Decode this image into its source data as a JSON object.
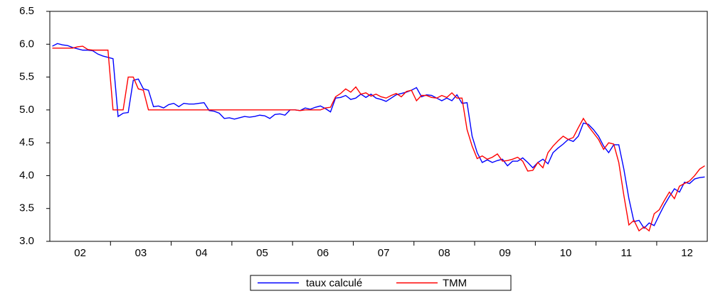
{
  "chart_data": {
    "type": "line",
    "categories": [
      null,
      null,
      null,
      null,
      null,
      null,
      "02",
      null,
      null,
      null,
      null,
      null,
      null,
      null,
      null,
      null,
      null,
      null,
      "03",
      null,
      null,
      null,
      null,
      null,
      null,
      null,
      null,
      null,
      null,
      null,
      "04",
      null,
      null,
      null,
      null,
      null,
      null,
      null,
      null,
      null,
      null,
      null,
      "05",
      null,
      null,
      null,
      null,
      null,
      null,
      null,
      null,
      null,
      null,
      null,
      "06",
      null,
      null,
      null,
      null,
      null,
      null,
      null,
      null,
      null,
      null,
      null,
      "07",
      null,
      null,
      null,
      null,
      null,
      null,
      null,
      null,
      null,
      null,
      null,
      "08",
      null,
      null,
      null,
      null,
      null,
      null,
      null,
      null,
      null,
      null,
      null,
      "09",
      null,
      null,
      null,
      null,
      null,
      null,
      null,
      null,
      null,
      null,
      null,
      "10",
      null,
      null,
      null,
      null,
      null,
      null,
      null,
      null,
      null,
      null,
      null,
      "11",
      null,
      null,
      null,
      null,
      null,
      null,
      null,
      null,
      null,
      null,
      null,
      "12",
      null,
      null,
      null
    ],
    "series": [
      {
        "name": "taux calculé",
        "color": "#0000ff",
        "values": [
          5.97,
          6.01,
          5.99,
          5.98,
          5.95,
          5.93,
          5.91,
          5.91,
          5.9,
          5.85,
          5.82,
          5.8,
          5.78,
          4.9,
          4.95,
          4.96,
          5.45,
          5.47,
          5.32,
          5.3,
          5.05,
          5.06,
          5.03,
          5.08,
          5.1,
          5.05,
          5.1,
          5.09,
          5.09,
          5.1,
          5.11,
          4.99,
          4.98,
          4.95,
          4.87,
          4.88,
          4.86,
          4.88,
          4.9,
          4.89,
          4.9,
          4.92,
          4.91,
          4.87,
          4.93,
          4.94,
          4.92,
          5.0,
          5.0,
          4.99,
          5.03,
          5.01,
          5.04,
          5.06,
          5.02,
          4.97,
          5.18,
          5.19,
          5.22,
          5.16,
          5.18,
          5.24,
          5.19,
          5.24,
          5.18,
          5.16,
          5.13,
          5.18,
          5.23,
          5.25,
          5.27,
          5.3,
          5.34,
          5.2,
          5.23,
          5.22,
          5.18,
          5.14,
          5.18,
          5.14,
          5.23,
          5.1,
          5.11,
          4.6,
          4.35,
          4.2,
          4.24,
          4.2,
          4.23,
          4.25,
          4.15,
          4.22,
          4.22,
          4.27,
          4.2,
          4.12,
          4.2,
          4.25,
          4.18,
          4.35,
          4.42,
          4.48,
          4.55,
          4.52,
          4.6,
          4.8,
          4.78,
          4.7,
          4.6,
          4.45,
          4.35,
          4.47,
          4.47,
          4.1,
          3.65,
          3.3,
          3.32,
          3.2,
          3.28,
          3.24,
          3.4,
          3.55,
          3.68,
          3.8,
          3.75,
          3.9,
          3.88,
          3.95,
          3.97,
          3.98
        ]
      },
      {
        "name": "TMM",
        "color": "#ff0000",
        "values": [
          5.94,
          5.94,
          5.94,
          5.94,
          5.94,
          5.96,
          5.97,
          5.92,
          5.91,
          5.91,
          5.91,
          5.91,
          5.0,
          5.0,
          5.0,
          5.5,
          5.5,
          5.32,
          5.3,
          5.0,
          5.0,
          5.0,
          5.0,
          5.0,
          5.0,
          5.0,
          5.0,
          5.0,
          5.0,
          5.0,
          5.0,
          5.0,
          5.0,
          5.0,
          5.0,
          5.0,
          5.0,
          5.0,
          5.0,
          5.0,
          5.0,
          5.0,
          5.0,
          5.0,
          5.0,
          5.0,
          5.0,
          5.0,
          5.0,
          4.99,
          5.0,
          5.0,
          5.0,
          5.0,
          5.03,
          5.04,
          5.2,
          5.25,
          5.32,
          5.27,
          5.35,
          5.24,
          5.26,
          5.21,
          5.24,
          5.2,
          5.18,
          5.22,
          5.25,
          5.2,
          5.28,
          5.3,
          5.14,
          5.22,
          5.22,
          5.19,
          5.18,
          5.22,
          5.19,
          5.26,
          5.18,
          5.18,
          4.7,
          4.45,
          4.26,
          4.3,
          4.25,
          4.28,
          4.33,
          4.22,
          4.23,
          4.25,
          4.28,
          4.22,
          4.07,
          4.08,
          4.2,
          4.12,
          4.35,
          4.45,
          4.53,
          4.6,
          4.55,
          4.58,
          4.73,
          4.87,
          4.75,
          4.65,
          4.55,
          4.4,
          4.5,
          4.48,
          4.2,
          3.7,
          3.25,
          3.32,
          3.16,
          3.22,
          3.16,
          3.42,
          3.48,
          3.62,
          3.75,
          3.65,
          3.84,
          3.88,
          3.92,
          4.0,
          4.1,
          4.15
        ]
      }
    ],
    "ylim": [
      3.0,
      6.5
    ],
    "yticks": [
      {
        "value": 3,
        "label": "3.0"
      },
      3.5,
      {
        "value": 4,
        "label": "4.0"
      },
      4.5,
      {
        "value": 5,
        "label": "5.0"
      },
      5.5,
      {
        "value": 6,
        "label": "6.0"
      },
      6.5
    ],
    "legend": "bottom"
  }
}
